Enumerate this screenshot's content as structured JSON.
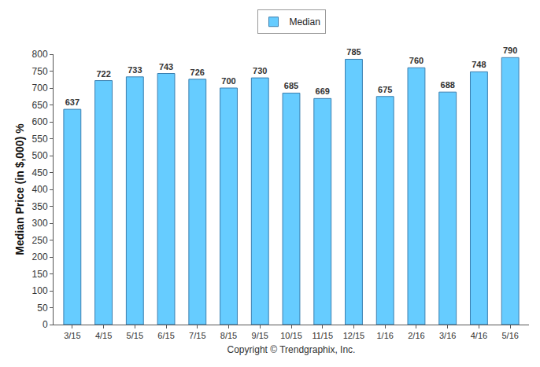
{
  "chart_data": {
    "type": "bar",
    "categories": [
      "3/15",
      "4/15",
      "5/15",
      "6/15",
      "7/15",
      "8/15",
      "9/15",
      "10/15",
      "11/15",
      "12/15",
      "1/16",
      "2/16",
      "3/16",
      "4/16",
      "5/16"
    ],
    "series": [
      {
        "name": "Median",
        "color": "#66ccff",
        "values": [
          637,
          722,
          733,
          743,
          726,
          700,
          730,
          685,
          669,
          785,
          675,
          760,
          688,
          748,
          790
        ]
      }
    ],
    "ylabel": "Median Price (in $,000) %",
    "xlabel": "Copyright © Trendgraphix, Inc.",
    "ylim": [
      0,
      800
    ],
    "yticks": [
      0,
      50,
      100,
      150,
      200,
      250,
      300,
      350,
      400,
      450,
      500,
      550,
      600,
      650,
      700,
      750,
      800
    ],
    "grid": false,
    "legend": "top",
    "data_labels": true
  }
}
